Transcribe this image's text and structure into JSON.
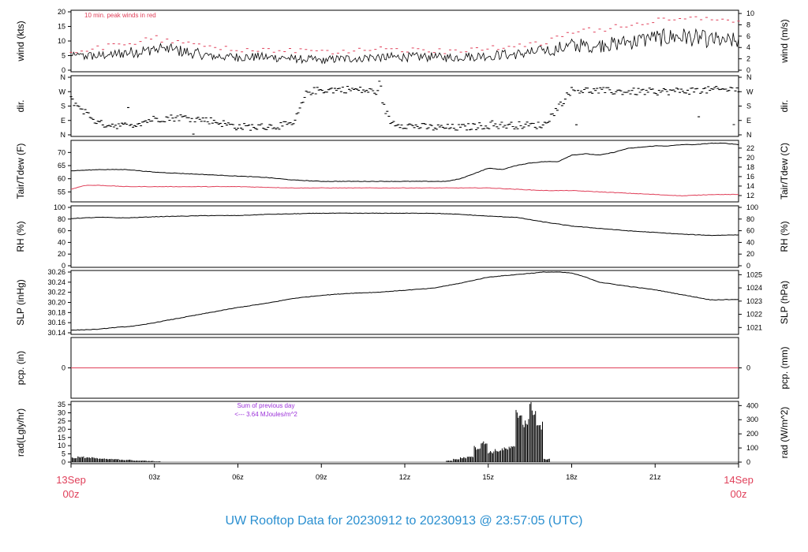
{
  "title": "UW Rooftop Data for 20230912  to  20230913 @ 23:57:05  (UTC)",
  "colors": {
    "red": "#e0405a",
    "purple": "#9b30d9",
    "title": "#2a8fd0",
    "black": "#000000"
  },
  "chart_data": {
    "type": "line",
    "x_range_hours": [
      0,
      24
    ],
    "x_ticks": [
      {
        "h": 0,
        "label": "13Sep",
        "sublabel": "00z",
        "major": true
      },
      {
        "h": 3,
        "label": "03z"
      },
      {
        "h": 6,
        "label": "06z"
      },
      {
        "h": 9,
        "label": "09z"
      },
      {
        "h": 12,
        "label": "12z"
      },
      {
        "h": 15,
        "label": "15z"
      },
      {
        "h": 18,
        "label": "18z"
      },
      {
        "h": 21,
        "label": "21z"
      },
      {
        "h": 24,
        "label": "14Sep",
        "sublabel": "00z",
        "major": true
      }
    ],
    "panels": [
      {
        "id": "wind",
        "ylabel": "wind (kts)",
        "ylabel_right": "wind (m/s)",
        "ylim": [
          0,
          20
        ],
        "yticks": [
          "0",
          "5",
          "10",
          "15",
          "20"
        ],
        "ytick_values": [
          0,
          5,
          10,
          15,
          20
        ],
        "ylim_right": [
          0,
          10.29
        ],
        "yticks_right": [
          "0",
          "2",
          "4",
          "6",
          "8",
          "10"
        ],
        "ytick_values_right": [
          0,
          2,
          4,
          6,
          8,
          10
        ],
        "note": "10 min. peak winds in red",
        "series": [
          {
            "kind": "wind",
            "h": [
              0,
              1,
              2,
              2.5,
              3,
              4,
              5,
              6,
              7,
              8,
              9,
              10,
              11,
              12,
              13,
              13.5,
              14,
              15,
              16,
              17,
              17.5,
              18,
              19,
              20,
              21,
              22,
              23,
              24
            ],
            "values": [
              4.5,
              5,
              6,
              6.5,
              7.5,
              6.5,
              5,
              4.5,
              4.5,
              4,
              3.5,
              4,
              4.5,
              4.5,
              4.5,
              4.3,
              4.5,
              5,
              5.5,
              6.5,
              7.5,
              8.5,
              8.5,
              9.5,
              11,
              11.5,
              10.5,
              10
            ],
            "peak": [
              6.5,
              7.5,
              9,
              10,
              11,
              9.5,
              7.5,
              7,
              7,
              6.5,
              6,
              6.5,
              7,
              7,
              7,
              6.5,
              7,
              7.5,
              8,
              9.5,
              11,
              13,
              14,
              15.5,
              17,
              18,
              17,
              16
            ]
          }
        ]
      },
      {
        "id": "dir",
        "ylabel": "dir.",
        "ylabel_right": "dir.",
        "ylim": [
          0,
          360
        ],
        "yticks": [
          "N",
          "E",
          "S",
          "W",
          "N"
        ],
        "ytick_values": [
          0,
          90,
          180,
          270,
          360
        ],
        "yticks_right": [
          "N",
          "E",
          "S",
          "W",
          "N"
        ],
        "ytick_values_right": [
          0,
          90,
          180,
          270,
          360
        ],
        "series": [
          {
            "kind": "dir",
            "h": [
              0,
              1,
              2,
              3,
              4,
              5,
              6,
              7,
              8,
              8.5,
              9,
              10,
              11,
              11.5,
              12,
              13,
              14,
              15,
              16,
              17,
              18,
              19,
              20,
              21,
              22,
              23,
              24
            ],
            "values": [
              220,
              70,
              55,
              100,
              110,
              90,
              50,
              50,
              65,
              270,
              280,
              285,
              270,
              80,
              60,
              45,
              45,
              60,
              60,
              60,
              280,
              275,
              270,
              270,
              275,
              280,
              285
            ]
          }
        ]
      },
      {
        "id": "temp",
        "ylabel": "Tair/Tdew (F)",
        "ylabel_right": "Tair/Tdew (C)",
        "ylim": [
          51.8,
          74
        ],
        "yticks": [
          "55",
          "60",
          "65",
          "70"
        ],
        "ytick_values": [
          55,
          60,
          65,
          70
        ],
        "ylim_right": [
          11,
          23.3
        ],
        "yticks_right": [
          "12",
          "14",
          "16",
          "18",
          "20",
          "22"
        ],
        "ytick_values_right": [
          12,
          14,
          16,
          18,
          20,
          22
        ],
        "series": [
          {
            "name": "Tair",
            "color": "#000000",
            "h": [
              0,
              1,
              2,
              3,
              4,
              5,
              6,
              7,
              8,
              9,
              10,
              11,
              12,
              13,
              13.5,
              14,
              14.5,
              15,
              15.5,
              16,
              16.5,
              17,
              17.5,
              18,
              18.5,
              19,
              19.5,
              20,
              20.5,
              21,
              21.5,
              22,
              22.5,
              23,
              23.5,
              24
            ],
            "values": [
              63,
              63.5,
              63.5,
              62.5,
              62,
              61.5,
              61,
              60.5,
              59.5,
              59,
              59,
              59,
              59,
              59,
              59,
              60,
              62,
              64,
              63.5,
              65,
              66,
              66.5,
              66.5,
              69,
              69.5,
              69,
              70,
              71.5,
              72,
              72.5,
              72.5,
              73,
              73,
              73.5,
              73.5,
              73
            ]
          },
          {
            "name": "Tdew",
            "color": "#e0405a",
            "h": [
              0,
              0.5,
              1,
              2,
              3,
              4,
              6,
              8,
              10,
              12,
              14,
              15,
              16,
              17,
              18,
              19,
              20,
              21,
              22,
              23,
              24
            ],
            "values": [
              56,
              57.5,
              57.5,
              57,
              57,
              57,
              57,
              56.5,
              56.5,
              56.5,
              56.5,
              56.5,
              56,
              55.5,
              55.5,
              55,
              54.5,
              54,
              53.5,
              54,
              54
            ]
          }
        ]
      },
      {
        "id": "rh",
        "ylabel": "RH (%)",
        "ylabel_right": "RH (%)",
        "ylim": [
          0,
          100
        ],
        "yticks": [
          "0",
          "20",
          "40",
          "60",
          "80",
          "100"
        ],
        "ytick_values": [
          0,
          20,
          40,
          60,
          80,
          100
        ],
        "yticks_right": [
          "0",
          "20",
          "40",
          "60",
          "80",
          "100"
        ],
        "ytick_values_right": [
          0,
          20,
          40,
          60,
          80,
          100
        ],
        "series": [
          {
            "name": "RH",
            "color": "#000000",
            "h": [
              0,
              1,
              2,
              3,
              4,
              5,
              6,
              7,
              8,
              9,
              10,
              11,
              12,
              13,
              14,
              15,
              16,
              17,
              18,
              19,
              20,
              21,
              22,
              23,
              24
            ],
            "values": [
              81,
              83,
              82,
              84,
              85,
              86,
              86,
              88,
              89,
              90,
              90,
              90,
              90,
              90,
              88,
              85,
              83,
              75,
              68,
              64,
              60,
              57,
              54,
              52,
              53
            ]
          }
        ]
      },
      {
        "id": "slp",
        "ylabel": "SLP (inHg)",
        "ylabel_right": "SLP (hPa)",
        "ylim": [
          30.14,
          30.26
        ],
        "yticks": [
          "30.14",
          "30.16",
          "30.18",
          "30.20",
          "30.22",
          "30.24",
          "30.26"
        ],
        "ytick_values": [
          30.14,
          30.16,
          30.18,
          30.2,
          30.22,
          30.24,
          30.26
        ],
        "ylim_right": [
          1020.6,
          1025.2
        ],
        "yticks_right": [
          "1021",
          "1022",
          "1023",
          "1024",
          "1025"
        ],
        "ytick_values_right": [
          1021,
          1022,
          1023,
          1024,
          1025
        ],
        "series": [
          {
            "name": "SLP",
            "color": "#000000",
            "h": [
              0,
              0.5,
              1,
              1.5,
              2,
              2.5,
              3,
              4,
              5,
              6,
              7,
              8,
              9,
              10,
              11,
              12,
              13,
              14,
              15,
              16,
              17,
              17.5,
              18,
              18.5,
              19,
              20,
              21,
              22,
              23,
              24
            ],
            "values": [
              30.145,
              30.146,
              30.147,
              30.15,
              30.152,
              30.155,
              30.16,
              30.17,
              30.18,
              30.19,
              30.198,
              30.208,
              30.214,
              30.218,
              30.22,
              30.224,
              30.228,
              30.238,
              30.25,
              30.255,
              30.26,
              30.26,
              30.258,
              30.25,
              30.24,
              30.232,
              30.225,
              30.215,
              30.205,
              30.206
            ]
          }
        ]
      },
      {
        "id": "pcp",
        "ylabel": "pcp. (in)",
        "ylabel_right": "pcp. (mm)",
        "ylim": [
          -1,
          1
        ],
        "yticks": [
          "0"
        ],
        "ytick_values": [
          0
        ],
        "yticks_right": [
          "0"
        ],
        "ytick_values_right": [
          0
        ],
        "series": [
          {
            "name": "pcp",
            "color": "#e0405a",
            "h": [
              0,
              24
            ],
            "values": [
              0,
              0
            ]
          }
        ]
      },
      {
        "id": "rad",
        "ylabel": "rad(Lgly/hr)",
        "ylabel_right": "rad (W/m^2)",
        "ylim": [
          0,
          36
        ],
        "yticks": [
          "0",
          "5",
          "10",
          "15",
          "20",
          "25",
          "30",
          "35"
        ],
        "ytick_values": [
          0,
          5,
          10,
          15,
          20,
          25,
          30,
          35
        ],
        "ylim_right": [
          0,
          418.6
        ],
        "yticks_right": [
          "0",
          "100",
          "200",
          "300",
          "400"
        ],
        "ytick_values_right": [
          0,
          100,
          200,
          300,
          400
        ],
        "note": "Sum of previous day",
        "note2": "<--- 3.64 MJoules/m^2",
        "series": [
          {
            "kind": "bars",
            "h": [
              0,
              0.25,
              0.5,
              0.75,
              1,
              1.25,
              1.5,
              1.75,
              2,
              2.25,
              2.5,
              2.75,
              3,
              13.5,
              13.75,
              14,
              14.25,
              14.5,
              14.75,
              15,
              15.25,
              15.5,
              15.75,
              16,
              16.25,
              16.5,
              16.75,
              17
            ],
            "values": [
              3,
              3.5,
              3,
              3,
              2.5,
              2,
              2,
              1.5,
              1.5,
              1,
              1,
              0.8,
              0.5,
              1,
              2,
              3,
              4,
              10,
              13,
              7,
              8,
              9,
              10,
              33,
              28,
              37,
              25,
              2
            ]
          }
        ]
      }
    ]
  }
}
